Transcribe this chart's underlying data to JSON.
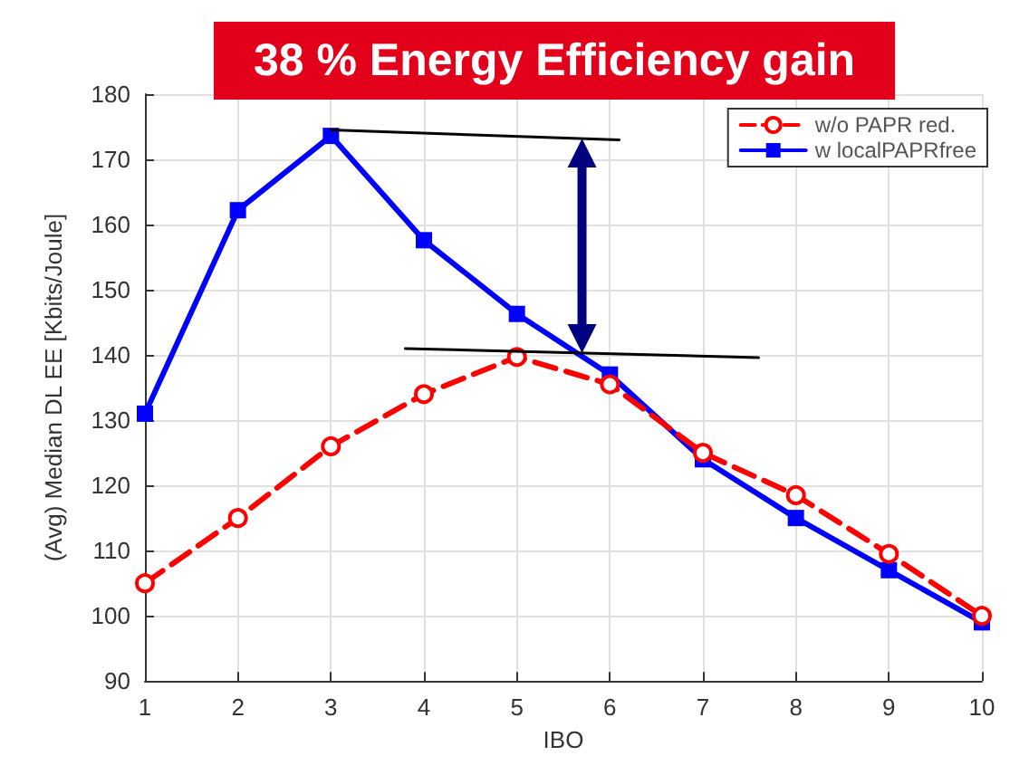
{
  "chart_data": {
    "type": "line",
    "title": "38 % Energy Efficiency gain",
    "xlabel": "IBO",
    "ylabel": "(Avg) Median DL EE [Kbits/Joule]",
    "x": [
      1,
      2,
      3,
      4,
      5,
      6,
      7,
      8,
      9,
      10
    ],
    "series": [
      {
        "name": "w/o PAPR red.",
        "color": "#ff0000",
        "marker": "circle",
        "line_style": "dashed",
        "values": [
          105,
          115,
          126,
          134,
          139.7,
          135.5,
          125,
          118.5,
          109.5,
          100
        ]
      },
      {
        "name": "w localPAPRfree",
        "color": "#0000ff",
        "marker": "square",
        "line_style": "solid",
        "values": [
          131,
          162.2,
          173.6,
          157.6,
          146.3,
          137,
          124,
          115,
          107,
          99
        ]
      },
      {
        "color": "#000000",
        "marker": "none",
        "line_style": "solid",
        "x": [
          3,
          6.1
        ],
        "values": [
          174.5,
          173
        ]
      },
      {
        "color": "#000000",
        "marker": "none",
        "line_style": "solid",
        "x": [
          3.8,
          7.6
        ],
        "values": [
          141,
          139.6
        ]
      }
    ],
    "xlim": [
      1,
      10
    ],
    "xticks": [
      1,
      2,
      3,
      4,
      5,
      6,
      7,
      8,
      9,
      10
    ],
    "ylim": [
      90,
      180
    ],
    "yticks": [
      90,
      100,
      110,
      120,
      130,
      140,
      150,
      160,
      170,
      180
    ],
    "grid": true,
    "legend": "top right"
  }
}
